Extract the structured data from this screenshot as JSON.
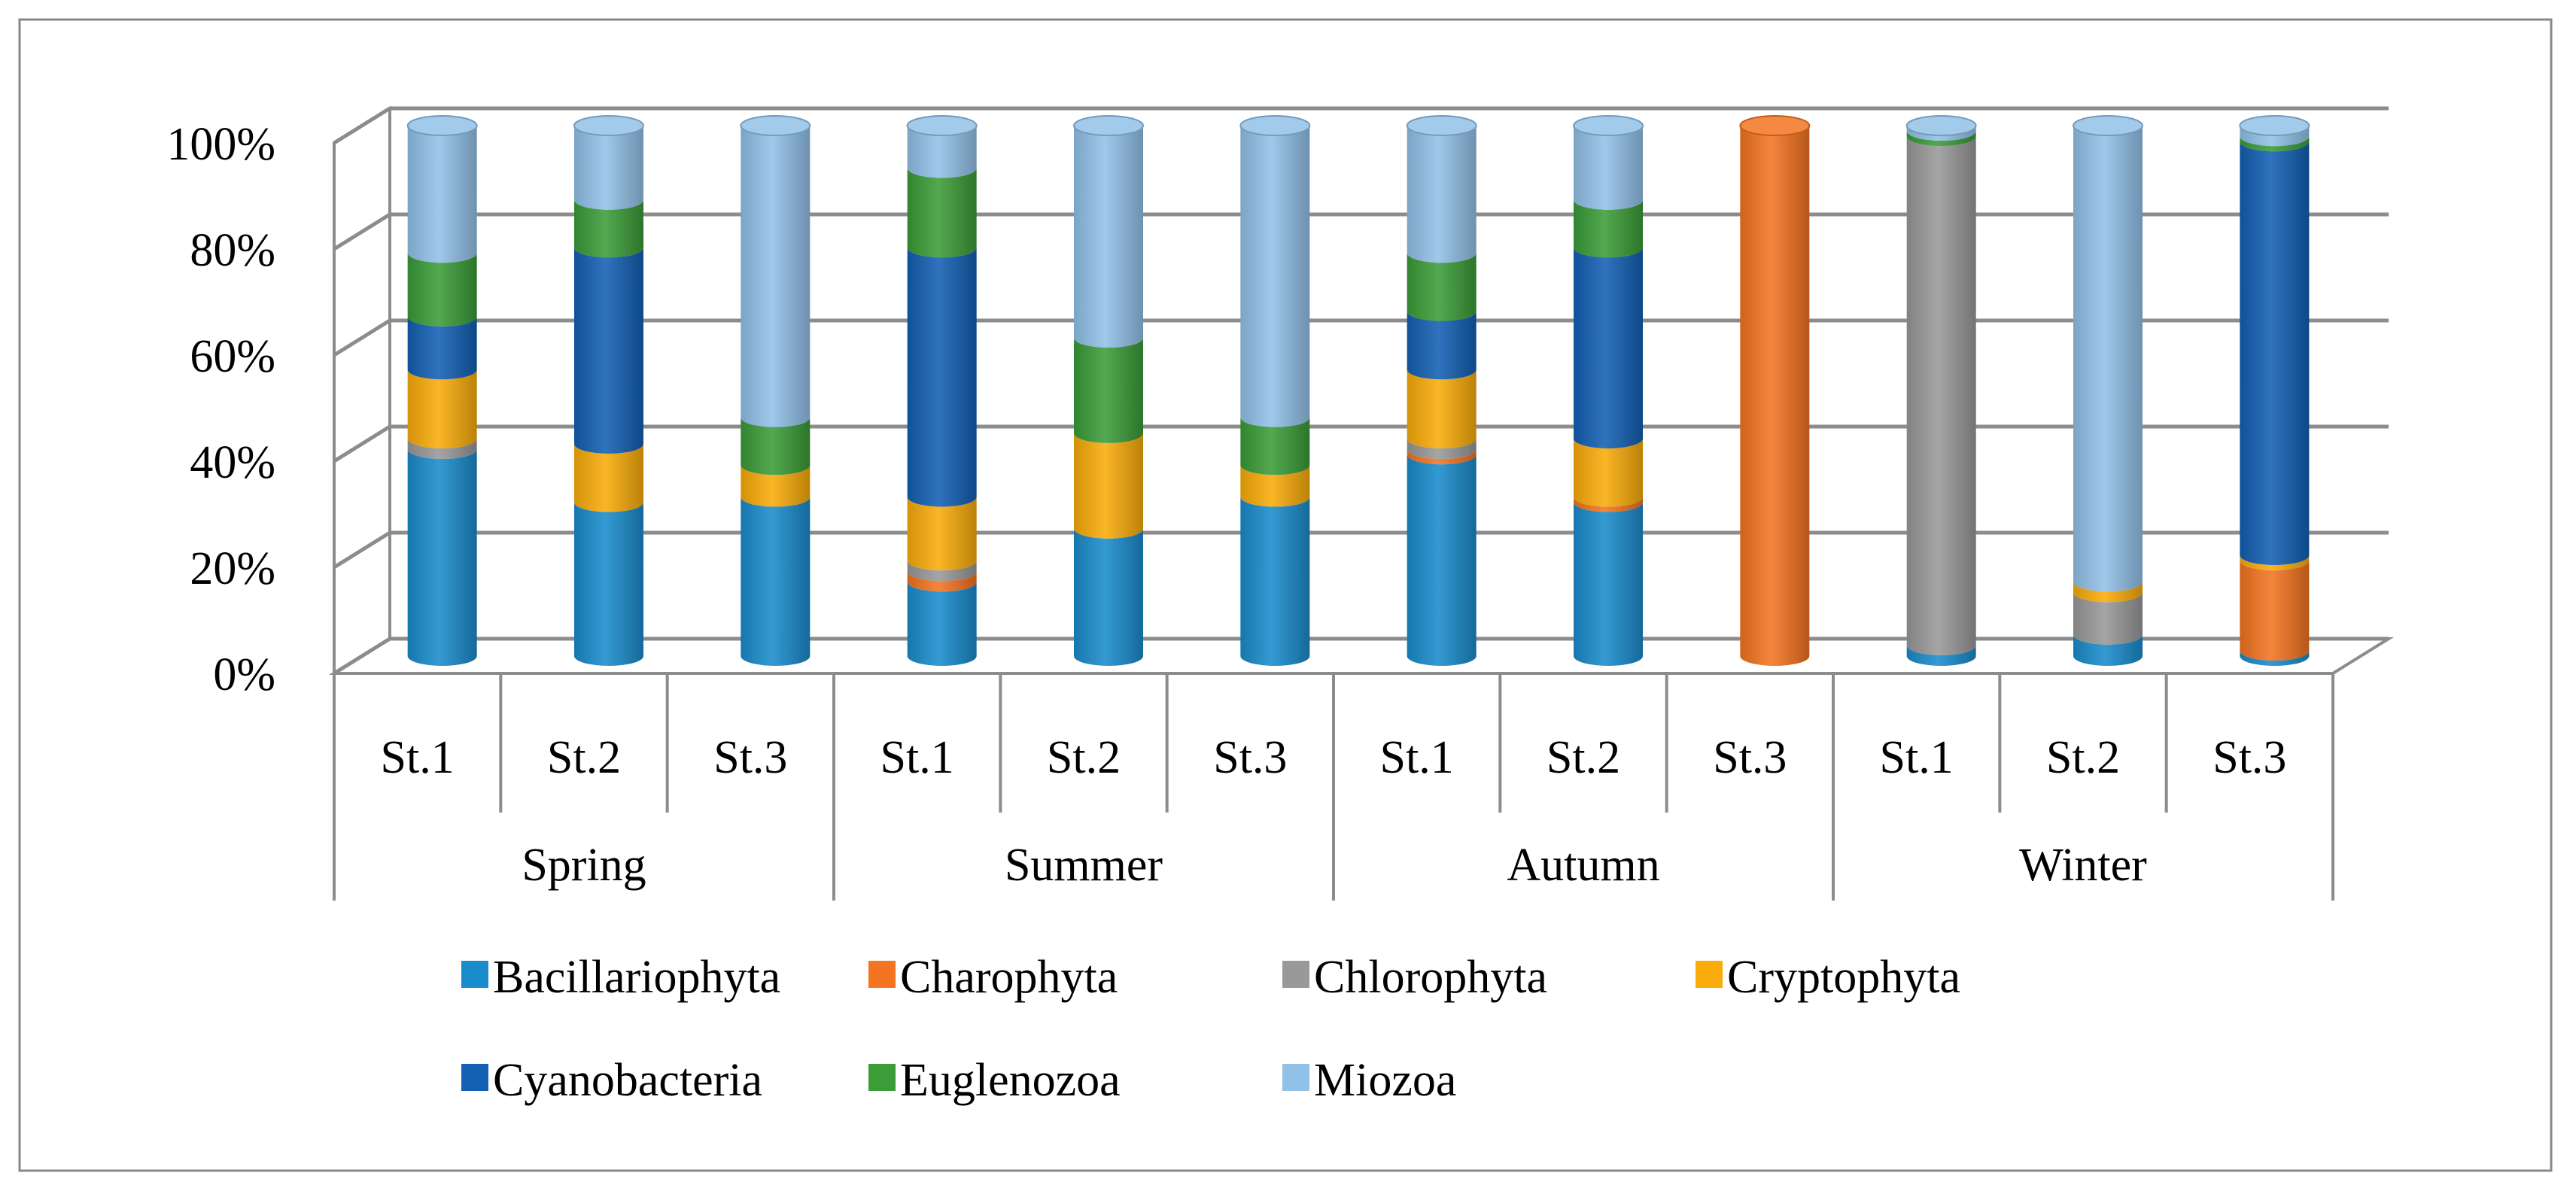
{
  "chart_data": {
    "type": "bar",
    "stacked": true,
    "percent": true,
    "ylim": [
      0,
      100
    ],
    "y_ticks": [
      0,
      20,
      40,
      60,
      80,
      100
    ],
    "y_tick_labels": [
      "0%",
      "20%",
      "40%",
      "60%",
      "80%",
      "100%"
    ],
    "grid": true,
    "legend_position": "bottom",
    "groups": [
      {
        "label": "Spring",
        "stations": [
          "St.1",
          "St.2",
          "St.3"
        ]
      },
      {
        "label": "Summer",
        "stations": [
          "St.1",
          "St.2",
          "St.3"
        ]
      },
      {
        "label": "Autumn",
        "stations": [
          "St.1",
          "St.2",
          "St.3"
        ]
      },
      {
        "label": "Winter",
        "stations": [
          "St.1",
          "St.2",
          "St.3"
        ]
      }
    ],
    "series": [
      {
        "name": "Bacillariophyta",
        "color": "#1a8ccc",
        "values": [
          39,
          29,
          30,
          14,
          24,
          30,
          38,
          29,
          0,
          2,
          4,
          1
        ]
      },
      {
        "name": "Charophyta",
        "color": "#f47421",
        "values": [
          0,
          0,
          0,
          2,
          0,
          0,
          1,
          1,
          100,
          0,
          0,
          17
        ]
      },
      {
        "name": "Chlorophyta",
        "color": "#999999",
        "values": [
          2,
          0,
          0,
          2,
          0,
          0,
          2,
          0,
          0,
          96,
          8,
          0
        ]
      },
      {
        "name": "Cryptophyta",
        "color": "#f9ac0a",
        "values": [
          13,
          11,
          6,
          12,
          18,
          6,
          13,
          11,
          0,
          0,
          2,
          1
        ]
      },
      {
        "name": "Cyanobacteria",
        "color": "#1360b4",
        "values": [
          10,
          37,
          0,
          47,
          0,
          0,
          11,
          36,
          0,
          0,
          0,
          78
        ]
      },
      {
        "name": "Euglenozoa",
        "color": "#3b9c38",
        "values": [
          12,
          9,
          9,
          15,
          18,
          9,
          11,
          9,
          0,
          1,
          0,
          1
        ]
      },
      {
        "name": "Miozoa",
        "color": "#92c1e8",
        "values": [
          24,
          14,
          55,
          8,
          40,
          55,
          24,
          14,
          0,
          1,
          86,
          2
        ]
      }
    ]
  }
}
